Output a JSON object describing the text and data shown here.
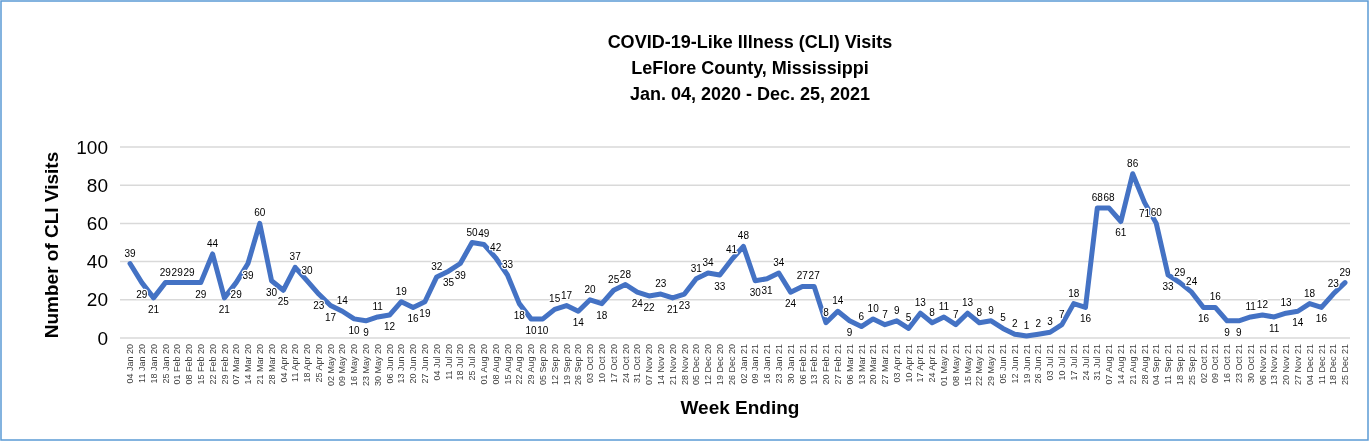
{
  "chart_data": {
    "type": "line",
    "title": "COVID-19-Like Illness (CLI) Visits\nLeFlore County, Mississippi\nJan. 04, 2020 - Dec. 25, 2021",
    "xlabel": "Week Ending",
    "ylabel": "Number of CLI Visits",
    "categories": [
      "04 Jan 20",
      "11 Jan 20",
      "18 Jan 20",
      "25 Jan 20",
      "01 Feb 20",
      "08 Feb 20",
      "15 Feb 20",
      "22 Feb 20",
      "29 Feb 20",
      "07 Mar 20",
      "14 Mar 20",
      "21 Mar 20",
      "28 Mar 20",
      "04 Apr 20",
      "11 Apr 20",
      "18 Apr 20",
      "25 Apr 20",
      "02 May 20",
      "09 May 20",
      "16 May 20",
      "23 May 20",
      "30 May 20",
      "06 Jun 20",
      "13 Jun 20",
      "20 Jun 20",
      "27 Jun 20",
      "04 Jul 20",
      "11 Jul 20",
      "18 Jul 20",
      "25 Jul 20",
      "01 Aug 20",
      "08 Aug 20",
      "15 Aug 20",
      "22 Aug 20",
      "29 Aug 20",
      "05 Sep 20",
      "12 Sep 20",
      "19 Sep 20",
      "26 Sep 20",
      "03 Oct 20",
      "10 Oct 20",
      "17 Oct 20",
      "24 Oct 20",
      "31 Oct 20",
      "07 Nov 20",
      "14 Nov 20",
      "21 Nov 20",
      "28 Nov 20",
      "05 Dec 20",
      "12 Dec 20",
      "19 Dec 20",
      "26 Dec 20",
      "02 Jan 21",
      "09 Jan 21",
      "16 Jan 21",
      "23 Jan 21",
      "30 Jan 21",
      "06 Feb 21",
      "13 Feb 21",
      "20 Feb 21",
      "27 Feb 21",
      "06 Mar 21",
      "13 Mar 21",
      "20 Mar 21",
      "27 Mar 21",
      "03 Apr 21",
      "10 Apr 21",
      "17 Apr 21",
      "24 Apr 21",
      "01 May 21",
      "08 May 21",
      "15 May 21",
      "22 May 21",
      "29 May 21",
      "05 Jun 21",
      "12 Jun 21",
      "19 Jun 21",
      "26 Jun 21",
      "03 Jul 21",
      "10 Jul 21",
      "17 Jul 21",
      "24 Jul 21",
      "31 Jul 21",
      "07 Aug 21",
      "14 Aug 21",
      "21 Aug 21",
      "28 Aug 21",
      "04 Sep 21",
      "11 Sep 21",
      "18 Sep 21",
      "25 Sep 21",
      "02 Oct 21",
      "09 Oct 21",
      "16 Oct 21",
      "23 Oct 21",
      "30 Oct 21",
      "06 Nov 21",
      "13 Nov 21",
      "20 Nov 21",
      "27 Nov 21",
      "04 Dec 21",
      "11 Dec 21",
      "18 Dec 21",
      "25 Dec 21"
    ],
    "series": [
      {
        "color": "#4472c4",
        "values": [
          39,
          29,
          21,
          29,
          29,
          29,
          29,
          44,
          21,
          29,
          39,
          60,
          30,
          25,
          37,
          30,
          23,
          17,
          14,
          10,
          9,
          11,
          12,
          19,
          16,
          19,
          32,
          35,
          39,
          50,
          49,
          42,
          33,
          18,
          10,
          10,
          15,
          17,
          14,
          20,
          18,
          25,
          28,
          24,
          22,
          23,
          21,
          23,
          31,
          34,
          33,
          41,
          48,
          30,
          31,
          34,
          24,
          27,
          27,
          8,
          14,
          9,
          6,
          10,
          7,
          9,
          5,
          13,
          8,
          11,
          7,
          13,
          8,
          9,
          5,
          2,
          1,
          2,
          3,
          7,
          18,
          16,
          68,
          68,
          61,
          86,
          71,
          60,
          33,
          29,
          24,
          16,
          16,
          9,
          9,
          11,
          12,
          11,
          13,
          14,
          18,
          16,
          23,
          29
        ]
      }
    ],
    "ylim": [
      0,
      100
    ],
    "yticks": [
      0,
      20,
      40,
      60,
      80,
      100
    ],
    "grid": "y",
    "data_labels": true,
    "marker": "none",
    "line_style": "solid"
  }
}
